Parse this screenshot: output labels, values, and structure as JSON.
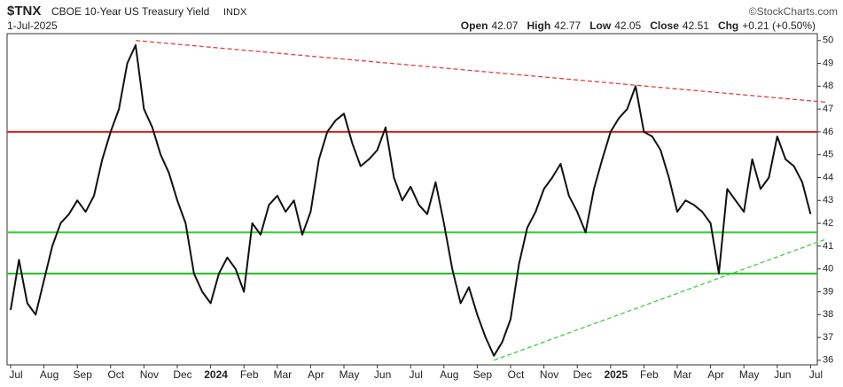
{
  "chart_data": {
    "type": "line",
    "header": {
      "symbol": "$TNX",
      "name": "CBOE 10-Year US Treasury Yield",
      "exchange": "INDX",
      "date": "1-Jul-2025",
      "source": "©StockCharts.com",
      "quote": [
        {
          "label": "Open",
          "value": 42.07
        },
        {
          "label": "High",
          "value": 42.77
        },
        {
          "label": "Low",
          "value": 42.05
        },
        {
          "label": "Close",
          "value": 42.51
        },
        {
          "label": "Chg",
          "value": "+0.21 (+0.50%)"
        }
      ]
    },
    "categories": [
      "Jul",
      null,
      null,
      null,
      "Aug",
      null,
      null,
      null,
      "Sep",
      null,
      null,
      null,
      "Oct",
      null,
      null,
      null,
      "Nov",
      null,
      null,
      null,
      "Dec",
      null,
      null,
      null,
      "2024",
      null,
      null,
      null,
      "Feb",
      null,
      null,
      null,
      "Mar",
      null,
      null,
      null,
      "Apr",
      null,
      null,
      null,
      "May",
      null,
      null,
      null,
      "Jun",
      null,
      null,
      null,
      "Jul",
      null,
      null,
      null,
      "Aug",
      null,
      null,
      null,
      "Sep",
      null,
      null,
      null,
      "Oct",
      null,
      null,
      null,
      "Nov",
      null,
      null,
      null,
      "Dec",
      null,
      null,
      null,
      "2025",
      null,
      null,
      null,
      "Feb",
      null,
      null,
      null,
      "Mar",
      null,
      null,
      null,
      "Apr",
      null,
      null,
      null,
      "May",
      null,
      null,
      null,
      "Jun",
      null,
      null,
      null,
      "Jul"
    ],
    "series": [
      {
        "color": "#111111",
        "values": [
          38.2,
          40.4,
          38.5,
          38.0,
          39.5,
          41.0,
          42.0,
          42.4,
          43.0,
          42.5,
          43.2,
          44.8,
          46.0,
          47.0,
          49.0,
          49.8,
          47.0,
          46.2,
          45.0,
          44.2,
          43.0,
          42.0,
          39.8,
          39.0,
          38.5,
          39.8,
          40.5,
          40.0,
          39.0,
          42.0,
          41.5,
          42.8,
          43.2,
          42.5,
          43.0,
          41.5,
          42.5,
          44.8,
          46.0,
          46.5,
          46.8,
          45.5,
          44.5,
          44.8,
          45.2,
          46.2,
          44.0,
          43.0,
          43.6,
          42.8,
          42.4,
          43.8,
          42.0,
          40.0,
          38.5,
          39.2,
          38.0,
          37.0,
          36.2,
          36.8,
          37.8,
          40.2,
          41.8,
          42.5,
          43.5,
          44.0,
          44.6,
          43.2,
          42.5,
          41.6,
          43.5,
          44.8,
          46.0,
          46.6,
          47.0,
          48.0,
          46.0,
          45.8,
          45.2,
          44.0,
          42.5,
          43.0,
          42.8,
          42.5,
          42.0,
          39.8,
          43.5,
          43.0,
          42.5,
          44.8,
          43.5,
          44.0,
          45.8,
          44.8,
          44.5,
          43.8,
          42.4
        ]
      }
    ],
    "hlines": [
      {
        "value": 46.0,
        "color": "#d42020"
      },
      {
        "value": 41.6,
        "color": "#33cc33"
      },
      {
        "value": 39.8,
        "color": "#22bb22"
      }
    ],
    "trendlines": [
      {
        "x": [
          15,
          96
        ],
        "y": [
          50.0,
          47.3
        ],
        "color": "#e04040"
      },
      {
        "x": [
          58,
          96
        ],
        "y": [
          36.0,
          41.3
        ],
        "color": "#44cc44"
      }
    ],
    "ylim": [
      35.8,
      50.3
    ],
    "yticks": [
      36,
      37,
      38,
      39,
      40,
      41,
      42,
      43,
      44,
      45,
      46,
      47,
      48,
      49,
      50
    ],
    "grid": false
  }
}
